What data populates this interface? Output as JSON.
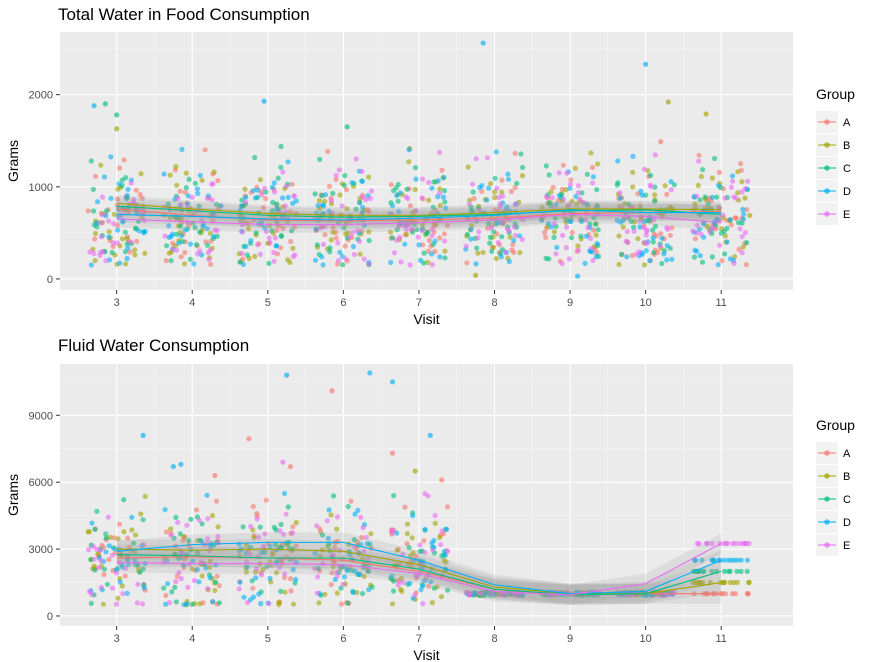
{
  "chart_data": [
    {
      "type": "scatter",
      "title": "Total Water in Food Consumption",
      "xlabel": "Visit",
      "ylabel": "Grams",
      "x_ticks": [
        3,
        4,
        5,
        6,
        7,
        8,
        9,
        10,
        11
      ],
      "y_ticks": [
        0,
        1000,
        2000
      ],
      "xlim": [
        2.25,
        11.95
      ],
      "ylim": [
        -120,
        2680
      ],
      "grid": true,
      "legend": "right",
      "legend_title": "Group",
      "groups": [
        "A",
        "B",
        "C",
        "D",
        "E"
      ],
      "colors": {
        "A": "#F8766D",
        "B": "#A3A500",
        "C": "#00BF7D",
        "D": "#00B0F6",
        "E": "#E76BF3"
      },
      "point_spread": {
        "center": 640,
        "sd": 300,
        "min": 150,
        "max": 1450,
        "jitter": 0.38,
        "points_per_group_visit": 26
      },
      "outliers": [
        {
          "x": 2.7,
          "y": 1880,
          "g": "D"
        },
        {
          "x": 2.85,
          "y": 1900,
          "g": "C"
        },
        {
          "x": 3.0,
          "y": 1780,
          "g": "C"
        },
        {
          "x": 3.0,
          "y": 1630,
          "g": "B"
        },
        {
          "x": 4.95,
          "y": 1930,
          "g": "D"
        },
        {
          "x": 6.05,
          "y": 1650,
          "g": "C"
        },
        {
          "x": 7.85,
          "y": 2560,
          "g": "D"
        },
        {
          "x": 10.0,
          "y": 2330,
          "g": "D"
        },
        {
          "x": 10.3,
          "y": 1920,
          "g": "B"
        },
        {
          "x": 10.8,
          "y": 1790,
          "g": "B"
        },
        {
          "x": 10.2,
          "y": 1490,
          "g": "A"
        },
        {
          "x": 9.1,
          "y": 30,
          "g": "D"
        },
        {
          "x": 7.75,
          "y": 40,
          "g": "B"
        }
      ],
      "trend": {
        "x": [
          3,
          4,
          5,
          6,
          7,
          8,
          9,
          10,
          11
        ],
        "se_band": 90,
        "series": [
          {
            "name": "A",
            "values": [
              760,
              690,
              640,
              630,
              640,
              660,
              710,
              720,
              730
            ]
          },
          {
            "name": "B",
            "values": [
              820,
              760,
              710,
              690,
              690,
              720,
              760,
              760,
              750
            ]
          },
          {
            "name": "C",
            "values": [
              790,
              740,
              690,
              670,
              680,
              700,
              740,
              750,
              700
            ]
          },
          {
            "name": "D",
            "values": [
              700,
              680,
              650,
              640,
              660,
              690,
              750,
              720,
              720
            ]
          },
          {
            "name": "E",
            "values": [
              650,
              620,
              590,
              590,
              610,
              640,
              700,
              680,
              610
            ]
          }
        ]
      }
    },
    {
      "type": "scatter",
      "title": "Fluid Water Consumption",
      "xlabel": "Visit",
      "ylabel": "Grams",
      "x_ticks": [
        3,
        4,
        5,
        6,
        7,
        8,
        9,
        10,
        11
      ],
      "y_ticks": [
        0,
        3000,
        6000,
        9000
      ],
      "xlim": [
        2.25,
        11.95
      ],
      "ylim": [
        -450,
        11300
      ],
      "grid": true,
      "legend": "right",
      "legend_title": "Group",
      "groups": [
        "A",
        "B",
        "C",
        "D",
        "E"
      ],
      "colors": {
        "A": "#F8766D",
        "B": "#A3A500",
        "C": "#00BF7D",
        "D": "#00B0F6",
        "E": "#E76BF3"
      },
      "point_spread": {
        "center": 2500,
        "sd": 1200,
        "min": 500,
        "max": 5500,
        "jitter": 0.38,
        "points_per_group_visit": 22,
        "spread_visits": [
          3,
          4,
          5,
          6,
          7
        ]
      },
      "flat_visits": [
        8,
        9,
        10
      ],
      "flat_value": 1000,
      "visit11_levels": {
        "A": 1000,
        "B": 1500,
        "C": 2000,
        "D": 2500,
        "E": 3250
      },
      "outliers": [
        {
          "x": 3.35,
          "y": 8100,
          "g": "D"
        },
        {
          "x": 3.75,
          "y": 6700,
          "g": "D"
        },
        {
          "x": 3.85,
          "y": 6800,
          "g": "D"
        },
        {
          "x": 4.3,
          "y": 6300,
          "g": "A"
        },
        {
          "x": 4.75,
          "y": 7950,
          "g": "A"
        },
        {
          "x": 5.25,
          "y": 10800,
          "g": "D"
        },
        {
          "x": 5.85,
          "y": 10100,
          "g": "A"
        },
        {
          "x": 6.35,
          "y": 10900,
          "g": "D"
        },
        {
          "x": 6.65,
          "y": 10500,
          "g": "D"
        },
        {
          "x": 6.65,
          "y": 7300,
          "g": "A"
        },
        {
          "x": 6.95,
          "y": 6500,
          "g": "B"
        },
        {
          "x": 7.15,
          "y": 8100,
          "g": "D"
        },
        {
          "x": 7.3,
          "y": 6100,
          "g": "A"
        },
        {
          "x": 5.2,
          "y": 6900,
          "g": "E"
        },
        {
          "x": 5.3,
          "y": 6700,
          "g": "A"
        }
      ],
      "trend": {
        "x": [
          3,
          4,
          5,
          6,
          7,
          8,
          9,
          10,
          11
        ],
        "se_band": 450,
        "series": [
          {
            "name": "A",
            "values": [
              2600,
              2650,
              2600,
              2500,
              2000,
              1200,
              950,
              1000,
              1000
            ]
          },
          {
            "name": "B",
            "values": [
              3000,
              2950,
              3000,
              2900,
              2300,
              1300,
              1000,
              1000,
              1500
            ]
          },
          {
            "name": "C",
            "values": [
              2750,
              2700,
              2600,
              2600,
              2100,
              1200,
              950,
              1000,
              2000
            ]
          },
          {
            "name": "D",
            "values": [
              2900,
              3200,
              3300,
              3300,
              2500,
              1400,
              1000,
              1100,
              2500
            ]
          },
          {
            "name": "E",
            "values": [
              2400,
              2350,
              2350,
              2300,
              1900,
              1100,
              950,
              1450,
              3250
            ]
          }
        ]
      }
    }
  ]
}
